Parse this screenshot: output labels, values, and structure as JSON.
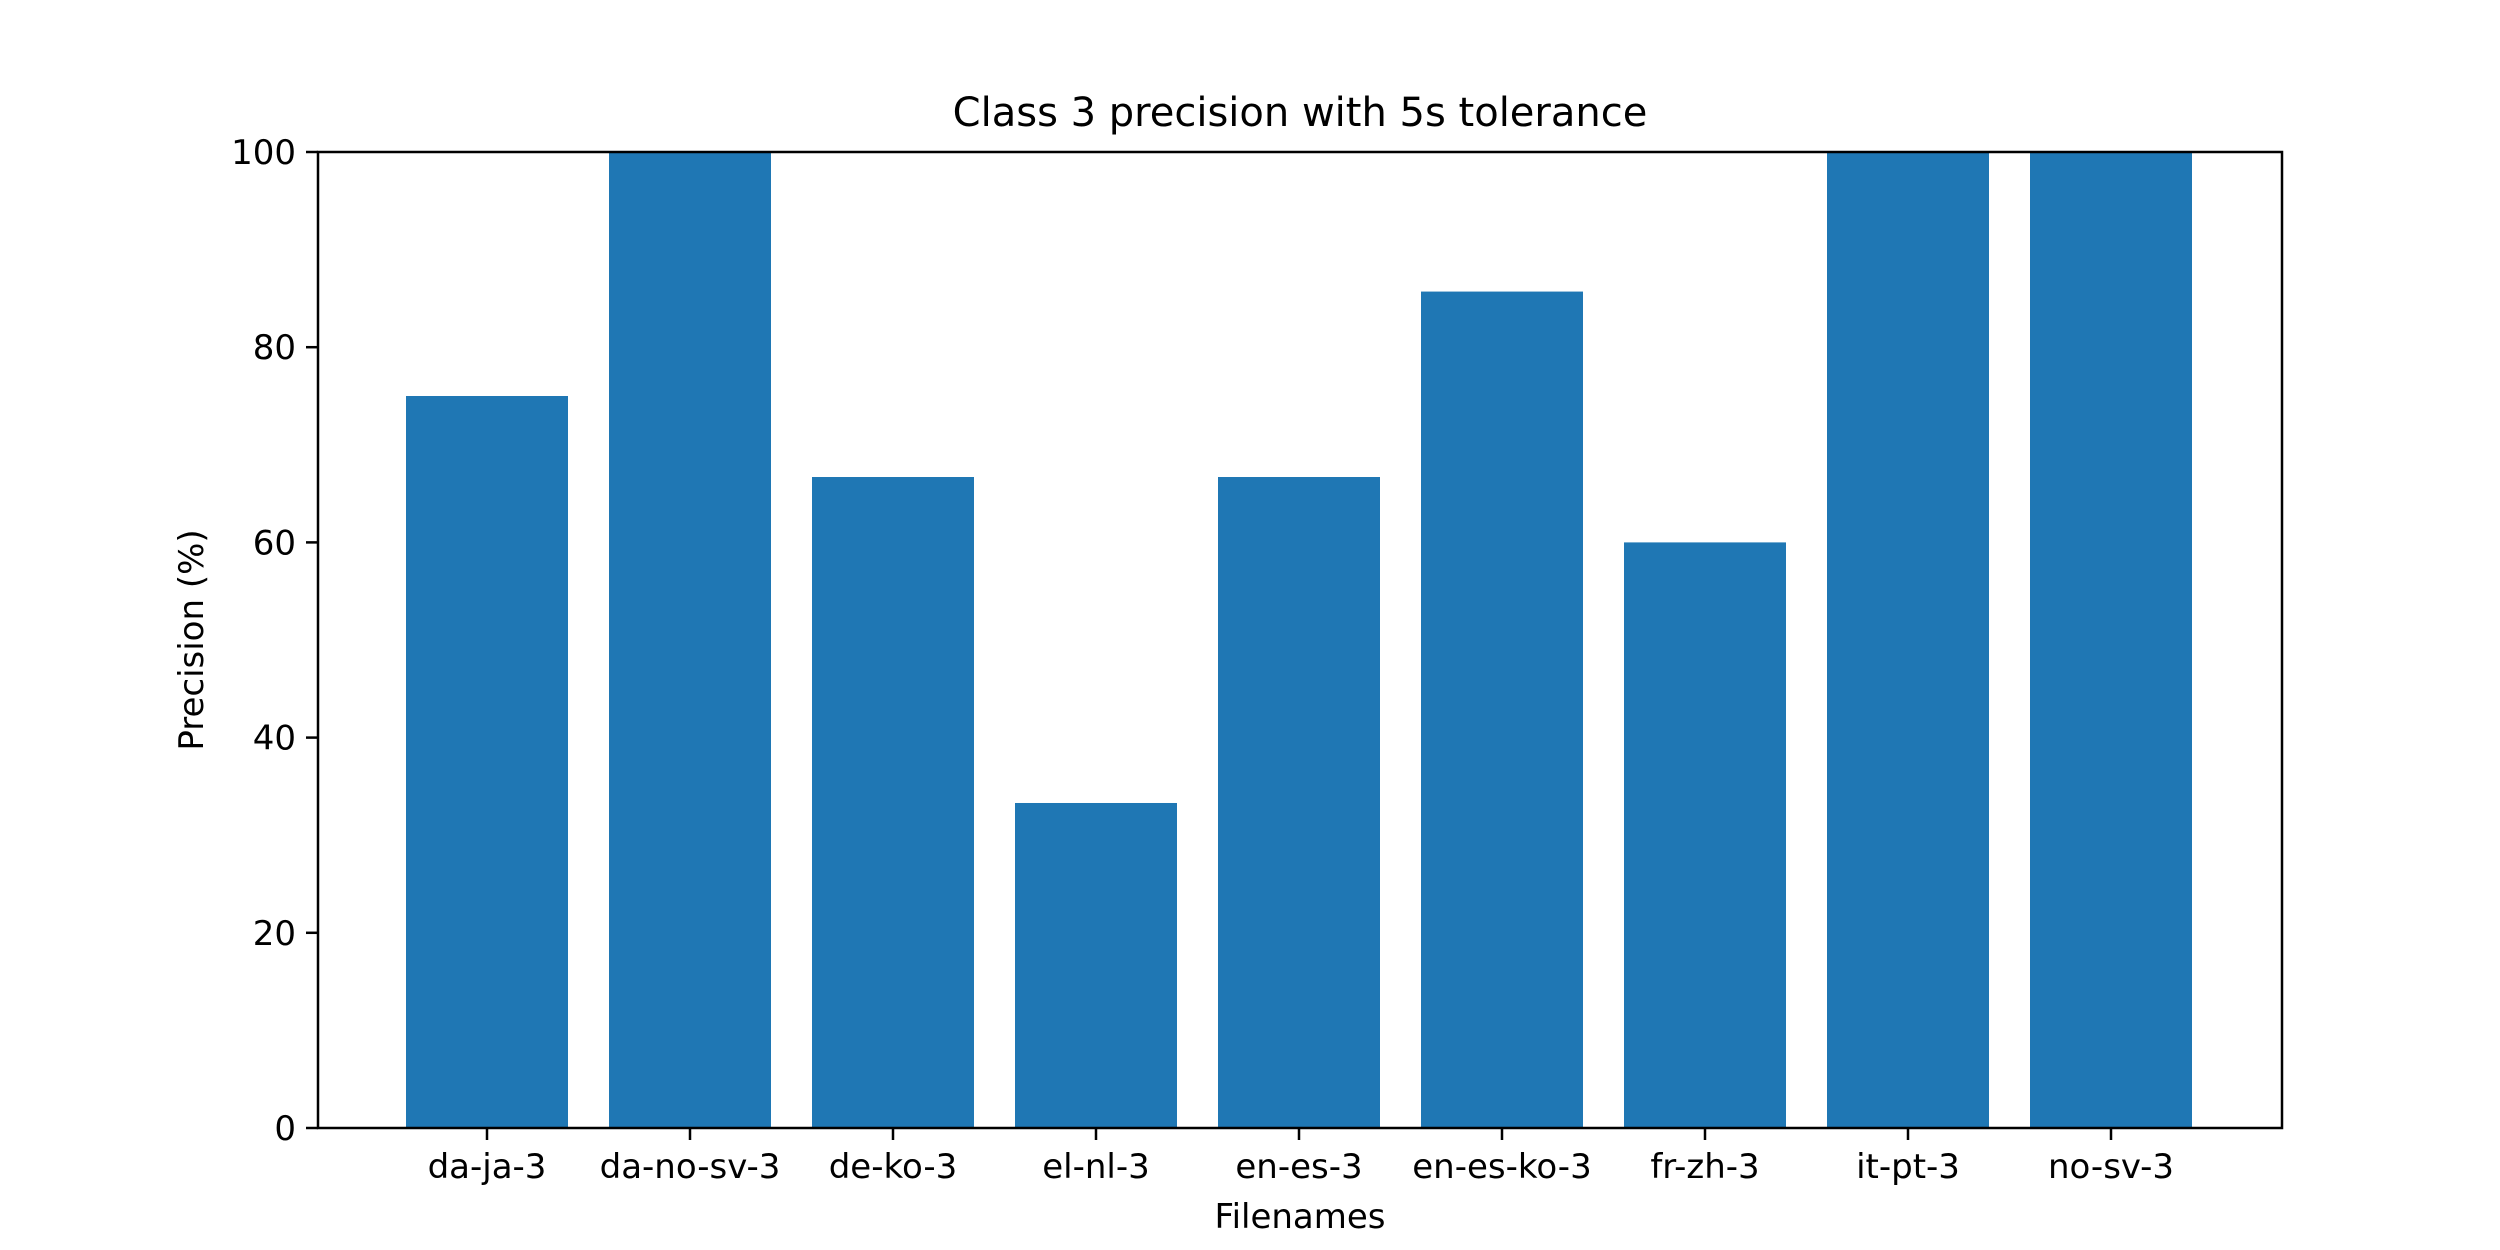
{
  "chart_data": {
    "type": "bar",
    "title": "Class 3 precision with 5s tolerance",
    "xlabel": "Filenames",
    "ylabel": "Precision (%)",
    "categories": [
      "da-ja-3",
      "da-no-sv-3",
      "de-ko-3",
      "el-nl-3",
      "en-es-3",
      "en-es-ko-3",
      "fr-zh-3",
      "it-pt-3",
      "no-sv-3"
    ],
    "values": [
      75.0,
      100.0,
      66.7,
      33.3,
      66.7,
      85.7,
      60.0,
      100.0,
      100.0
    ],
    "ylim": [
      0,
      100
    ],
    "yticks": [
      "0",
      "20",
      "40",
      "60",
      "80",
      "100"
    ],
    "grid": false,
    "legend": "none",
    "bar_color": "#1f77b4"
  }
}
